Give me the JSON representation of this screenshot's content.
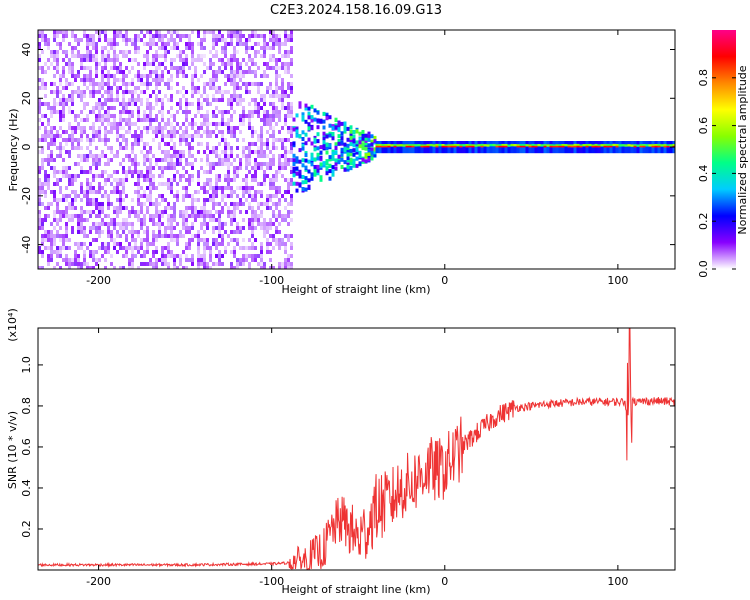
{
  "title": "C2E3.2024.158.16.09.G13",
  "chart_data": [
    {
      "type": "heatmap",
      "xlabel": "Height of straight line (km)",
      "ylabel": "Frequency (Hz)",
      "xlim": [
        -235,
        133
      ],
      "ylim": [
        -50,
        48
      ],
      "xticks": [
        -200,
        -100,
        0,
        100
      ],
      "yticks": [
        -40,
        -20,
        0,
        20,
        40
      ],
      "xtick_labels": [
        "-200",
        "-100",
        "0",
        "100"
      ],
      "ytick_labels": [
        "-40",
        "-20",
        "0",
        "20",
        "40"
      ],
      "noise_region_x": [
        -235,
        -88
      ],
      "transition_region_x": [
        -88,
        -40
      ],
      "signal_band_hz": 0,
      "grid": false,
      "colorbar": {
        "label": "Normalized spectral amplitude",
        "range": [
          0,
          1
        ],
        "ticks": [
          0.0,
          0.2,
          0.4,
          0.6,
          0.8
        ],
        "tick_labels": [
          "0.0",
          "0.2",
          "0.4",
          "0.6",
          "0.8"
        ],
        "colors": [
          "#ffffff",
          "#8800ff",
          "#0000ff",
          "#00ccff",
          "#00ff88",
          "#88ff00",
          "#ffff00",
          "#ff8800",
          "#ff0000",
          "#ff0088"
        ]
      }
    },
    {
      "type": "line",
      "xlabel": "Height of straight line (km)",
      "ylabel": "SNR (10 * v/v)",
      "y_scale_label": "(x10⁴)",
      "xlim": [
        -235,
        133
      ],
      "ylim": [
        0,
        1.18
      ],
      "xticks": [
        -200,
        -100,
        0,
        100
      ],
      "yticks": [
        0.2,
        0.4,
        0.6,
        0.8,
        1.0
      ],
      "xtick_labels": [
        "-200",
        "-100",
        "0",
        "100"
      ],
      "ytick_labels": [
        "0.2",
        "0.4",
        "0.6",
        "0.8",
        "1.0"
      ],
      "grid": false,
      "series": [
        {
          "color": "#ee3333",
          "x": [
            -235,
            -200,
            -150,
            -100,
            -90,
            -80,
            -70,
            -65,
            -60,
            -55,
            -50,
            -45,
            -40,
            -35,
            -30,
            -25,
            -20,
            -15,
            -10,
            -5,
            0,
            10,
            20,
            30,
            40,
            50,
            60,
            70,
            80,
            90,
            100,
            104,
            106,
            108,
            110,
            120,
            133
          ],
          "y": [
            0.025,
            0.025,
            0.025,
            0.03,
            0.035,
            0.05,
            0.1,
            0.2,
            0.25,
            0.2,
            0.15,
            0.2,
            0.3,
            0.32,
            0.35,
            0.4,
            0.42,
            0.45,
            0.5,
            0.48,
            0.5,
            0.6,
            0.68,
            0.75,
            0.79,
            0.8,
            0.81,
            0.815,
            0.82,
            0.82,
            0.82,
            0.82,
            0.75,
            0.85,
            0.82,
            0.825,
            0.82
          ]
        }
      ]
    }
  ]
}
